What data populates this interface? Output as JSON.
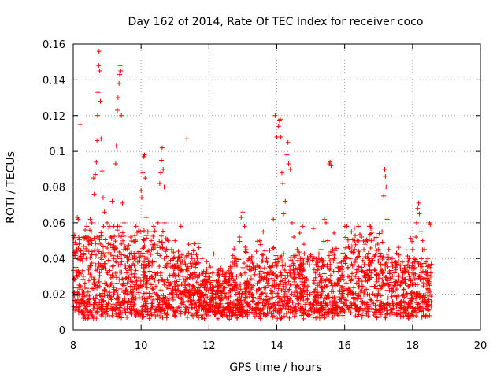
{
  "chart_data": {
    "type": "scatter",
    "title": "Day 162 of 2014, Rate Of TEC Index for receiver coco",
    "xlabel": "GPS time / hours",
    "ylabel": "ROTI / TECUs",
    "xlim": [
      8,
      20
    ],
    "ylim": [
      0,
      0.16
    ],
    "xticks": [
      8,
      10,
      12,
      14,
      16,
      18,
      20
    ],
    "xtick_labels": [
      "8",
      "10",
      "12",
      "14",
      "16",
      "18",
      "20"
    ],
    "yticks": [
      0,
      0.02,
      0.04,
      0.06,
      0.08,
      0.1,
      0.12,
      0.14,
      0.16
    ],
    "ytick_labels": [
      "0",
      "0.02",
      "0.04",
      "0.06",
      "0.08",
      "0.1",
      "0.12",
      "0.14",
      "0.16"
    ],
    "grid": true,
    "marker": "+",
    "marker_color": "#ff0000",
    "data_range_x": [
      8.0,
      18.55
    ],
    "series": [
      {
        "name": "ROTI",
        "points": [
          [
            8.05,
            0.011
          ],
          [
            8.08,
            0.035
          ],
          [
            8.1,
            0.045
          ],
          [
            8.12,
            0.063
          ],
          [
            8.15,
            0.062
          ],
          [
            8.2,
            0.115
          ],
          [
            8.25,
            0.04
          ],
          [
            8.3,
            0.052
          ],
          [
            8.35,
            0.056
          ],
          [
            8.4,
            0.058
          ],
          [
            8.45,
            0.05
          ],
          [
            8.5,
            0.062
          ],
          [
            8.55,
            0.06
          ],
          [
            8.6,
            0.085
          ],
          [
            8.62,
            0.076
          ],
          [
            8.65,
            0.087
          ],
          [
            8.68,
            0.094
          ],
          [
            8.7,
            0.106
          ],
          [
            8.72,
            0.12
          ],
          [
            8.73,
            0.133
          ],
          [
            8.75,
            0.148
          ],
          [
            8.76,
            0.156
          ],
          [
            8.78,
            0.145
          ],
          [
            8.8,
            0.128
          ],
          [
            8.82,
            0.107
          ],
          [
            8.85,
            0.089
          ],
          [
            8.88,
            0.074
          ],
          [
            8.92,
            0.066
          ],
          [
            9.0,
            0.06
          ],
          [
            9.05,
            0.057
          ],
          [
            9.1,
            0.052
          ],
          [
            9.15,
            0.072
          ],
          [
            9.2,
            0.058
          ],
          [
            9.25,
            0.093
          ],
          [
            9.27,
            0.103
          ],
          [
            9.3,
            0.123
          ],
          [
            9.32,
            0.13
          ],
          [
            9.35,
            0.138
          ],
          [
            9.37,
            0.143
          ],
          [
            9.38,
            0.148
          ],
          [
            9.4,
            0.145
          ],
          [
            9.42,
            0.12
          ],
          [
            9.45,
            0.071
          ],
          [
            9.5,
            0.06
          ],
          [
            9.6,
            0.045
          ],
          [
            9.7,
            0.043
          ],
          [
            9.8,
            0.04
          ],
          [
            9.9,
            0.038
          ],
          [
            10.0,
            0.078
          ],
          [
            10.02,
            0.074
          ],
          [
            10.05,
            0.088
          ],
          [
            10.08,
            0.097
          ],
          [
            10.1,
            0.098
          ],
          [
            10.12,
            0.085
          ],
          [
            10.15,
            0.063
          ],
          [
            10.2,
            0.055
          ],
          [
            10.3,
            0.05
          ],
          [
            10.4,
            0.048
          ],
          [
            10.5,
            0.06
          ],
          [
            10.55,
            0.082
          ],
          [
            10.58,
            0.088
          ],
          [
            10.6,
            0.095
          ],
          [
            10.62,
            0.102
          ],
          [
            10.65,
            0.09
          ],
          [
            10.68,
            0.08
          ],
          [
            10.7,
            0.06
          ],
          [
            10.8,
            0.05
          ],
          [
            10.9,
            0.045
          ],
          [
            11.0,
            0.05
          ],
          [
            11.1,
            0.044
          ],
          [
            11.2,
            0.042
          ],
          [
            11.35,
            0.107
          ],
          [
            11.4,
            0.048
          ],
          [
            11.5,
            0.04
          ],
          [
            11.6,
            0.035
          ],
          [
            11.7,
            0.046
          ],
          [
            11.8,
            0.04
          ],
          [
            11.9,
            0.03
          ],
          [
            12.0,
            0.028
          ],
          [
            12.1,
            0.022
          ],
          [
            12.2,
            0.02
          ],
          [
            12.3,
            0.018
          ],
          [
            12.4,
            0.033
          ],
          [
            12.5,
            0.03
          ],
          [
            12.6,
            0.028
          ],
          [
            12.7,
            0.03
          ],
          [
            12.8,
            0.04
          ],
          [
            12.9,
            0.052
          ],
          [
            12.95,
            0.063
          ],
          [
            13.0,
            0.066
          ],
          [
            13.05,
            0.058
          ],
          [
            13.1,
            0.045
          ],
          [
            13.2,
            0.04
          ],
          [
            13.3,
            0.035
          ],
          [
            13.4,
            0.044
          ],
          [
            13.5,
            0.05
          ],
          [
            13.6,
            0.055
          ],
          [
            13.7,
            0.04
          ],
          [
            13.8,
            0.035
          ],
          [
            13.9,
            0.062
          ],
          [
            13.95,
            0.12
          ],
          [
            14.0,
            0.108
          ],
          [
            14.05,
            0.114
          ],
          [
            14.08,
            0.117
          ],
          [
            14.1,
            0.118
          ],
          [
            14.12,
            0.108
          ],
          [
            14.15,
            0.088
          ],
          [
            14.18,
            0.082
          ],
          [
            14.2,
            0.065
          ],
          [
            14.25,
            0.072
          ],
          [
            14.3,
            0.098
          ],
          [
            14.33,
            0.105
          ],
          [
            14.35,
            0.093
          ],
          [
            14.4,
            0.09
          ],
          [
            14.45,
            0.06
          ],
          [
            14.5,
            0.052
          ],
          [
            14.6,
            0.045
          ],
          [
            14.7,
            0.04
          ],
          [
            14.8,
            0.048
          ],
          [
            14.9,
            0.038
          ],
          [
            15.0,
            0.042
          ],
          [
            15.1,
            0.04
          ],
          [
            15.2,
            0.038
          ],
          [
            15.3,
            0.045
          ],
          [
            15.4,
            0.062
          ],
          [
            15.45,
            0.06
          ],
          [
            15.5,
            0.05
          ],
          [
            15.55,
            0.093
          ],
          [
            15.57,
            0.094
          ],
          [
            15.6,
            0.092
          ],
          [
            15.65,
            0.045
          ],
          [
            15.7,
            0.04
          ],
          [
            15.8,
            0.035
          ],
          [
            15.9,
            0.038
          ],
          [
            16.0,
            0.04
          ],
          [
            16.1,
            0.035
          ],
          [
            16.2,
            0.055
          ],
          [
            16.3,
            0.05
          ],
          [
            16.4,
            0.058
          ],
          [
            16.5,
            0.052
          ],
          [
            16.6,
            0.048
          ],
          [
            16.7,
            0.043
          ],
          [
            16.8,
            0.04
          ],
          [
            16.9,
            0.042
          ],
          [
            17.0,
            0.045
          ],
          [
            17.1,
            0.055
          ],
          [
            17.15,
            0.075
          ],
          [
            17.18,
            0.09
          ],
          [
            17.2,
            0.086
          ],
          [
            17.22,
            0.08
          ],
          [
            17.25,
            0.062
          ],
          [
            17.3,
            0.045
          ],
          [
            17.4,
            0.04
          ],
          [
            17.5,
            0.035
          ],
          [
            17.6,
            0.042
          ],
          [
            17.7,
            0.038
          ],
          [
            17.8,
            0.036
          ],
          [
            17.9,
            0.04
          ],
          [
            18.0,
            0.045
          ],
          [
            18.05,
            0.04
          ],
          [
            18.1,
            0.052
          ],
          [
            18.12,
            0.06
          ],
          [
            18.15,
            0.068
          ],
          [
            18.18,
            0.071
          ],
          [
            18.2,
            0.065
          ],
          [
            18.25,
            0.055
          ],
          [
            18.3,
            0.05
          ],
          [
            18.35,
            0.045
          ],
          [
            18.4,
            0.038
          ],
          [
            18.45,
            0.04
          ],
          [
            18.5,
            0.06
          ],
          [
            18.52,
            0.059
          ],
          [
            8.3,
            0.03
          ],
          [
            8.6,
            0.028
          ],
          [
            8.9,
            0.035
          ],
          [
            9.2,
            0.04
          ],
          [
            9.5,
            0.025
          ],
          [
            9.8,
            0.03
          ],
          [
            10.1,
            0.032
          ],
          [
            10.4,
            0.028
          ],
          [
            10.7,
            0.035
          ],
          [
            11.0,
            0.03
          ],
          [
            11.3,
            0.025
          ],
          [
            11.6,
            0.022
          ],
          [
            11.9,
            0.02
          ],
          [
            12.2,
            0.015
          ],
          [
            12.5,
            0.012
          ],
          [
            12.8,
            0.02
          ],
          [
            13.1,
            0.025
          ],
          [
            13.4,
            0.022
          ],
          [
            13.7,
            0.028
          ],
          [
            14.0,
            0.03
          ],
          [
            14.3,
            0.032
          ],
          [
            14.6,
            0.025
          ],
          [
            14.9,
            0.022
          ],
          [
            15.2,
            0.025
          ],
          [
            15.5,
            0.028
          ],
          [
            15.8,
            0.026
          ],
          [
            16.1,
            0.03
          ],
          [
            16.4,
            0.034
          ],
          [
            16.7,
            0.03
          ],
          [
            17.0,
            0.028
          ],
          [
            17.3,
            0.025
          ],
          [
            17.6,
            0.028
          ],
          [
            17.9,
            0.03
          ],
          [
            18.2,
            0.03
          ],
          [
            18.5,
            0.025
          ],
          [
            8.2,
            0.015
          ],
          [
            8.7,
            0.012
          ],
          [
            9.1,
            0.018
          ],
          [
            9.6,
            0.015
          ],
          [
            10.2,
            0.012
          ],
          [
            10.8,
            0.014
          ],
          [
            11.4,
            0.01
          ],
          [
            12.0,
            0.008
          ],
          [
            12.6,
            0.006
          ],
          [
            13.2,
            0.01
          ],
          [
            13.8,
            0.012
          ],
          [
            14.4,
            0.01
          ],
          [
            15.0,
            0.012
          ],
          [
            15.6,
            0.01
          ],
          [
            16.2,
            0.014
          ],
          [
            16.8,
            0.012
          ],
          [
            17.4,
            0.01
          ],
          [
            18.0,
            0.012
          ],
          [
            18.5,
            0.008
          ]
        ]
      }
    ]
  }
}
